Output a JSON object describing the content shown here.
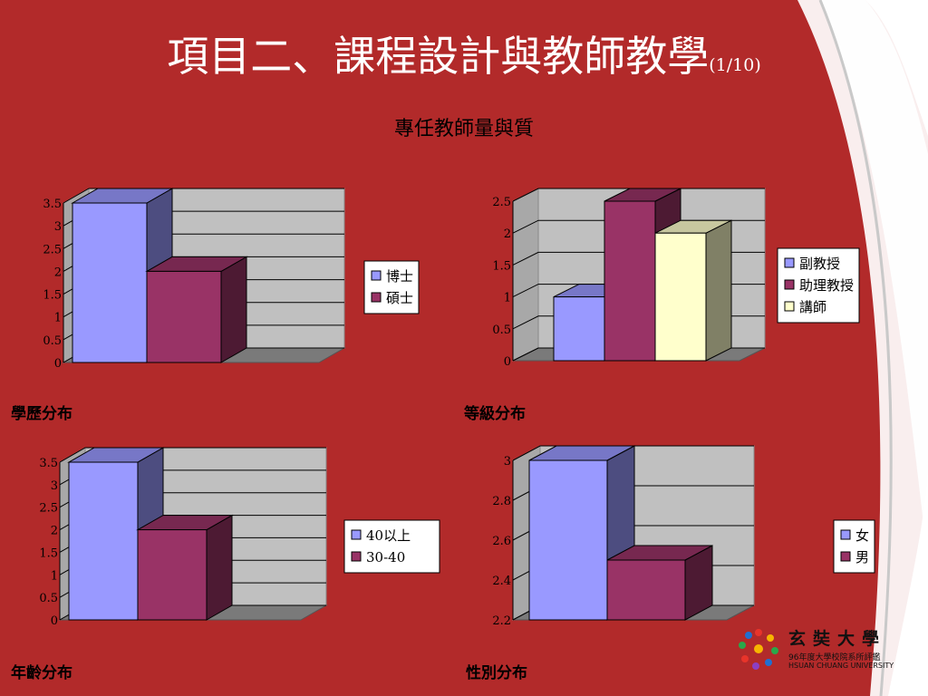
{
  "page": {
    "title": "項目二、課程設計與教師教學",
    "page_indicator": "(1/10)",
    "subtitle": "專任教師量與質"
  },
  "colors": {
    "background": "#b22a2a",
    "series_colors": [
      "#9999ff",
      "#993366",
      "#ffffcc"
    ]
  },
  "logo": {
    "name": "玄奘大學",
    "line1": "96年度大學校院系所評鑑",
    "line2": "HSUAN CHUANG UNIVERSITY"
  },
  "chart_data": [
    {
      "type": "bar",
      "caption": "學歷分布",
      "categories": [
        ""
      ],
      "series": [
        {
          "name": "博士",
          "values": [
            3.5
          ]
        },
        {
          "name": "碩士",
          "values": [
            2
          ]
        }
      ],
      "ylim": [
        0,
        3.5
      ],
      "yticks": [
        "0",
        "0.5",
        "1",
        "1.5",
        "2",
        "2.5",
        "3",
        "3.5"
      ],
      "grid": true,
      "legend_position": "right"
    },
    {
      "type": "bar",
      "caption": "等級分布",
      "categories": [
        ""
      ],
      "series": [
        {
          "name": "副教授",
          "values": [
            1
          ]
        },
        {
          "name": "助理教授",
          "values": [
            2.5
          ]
        },
        {
          "name": "講師",
          "values": [
            2
          ]
        }
      ],
      "ylim": [
        0,
        2.5
      ],
      "yticks": [
        "0",
        "0.5",
        "1",
        "1.5",
        "2",
        "2.5"
      ],
      "grid": true,
      "legend_position": "right"
    },
    {
      "type": "bar",
      "caption": "年齡分布",
      "categories": [
        ""
      ],
      "series": [
        {
          "name": "40以上",
          "values": [
            3.5
          ]
        },
        {
          "name": "30-40",
          "values": [
            2
          ]
        }
      ],
      "ylim": [
        0,
        3.5
      ],
      "yticks": [
        "0",
        "0.5",
        "1",
        "1.5",
        "2",
        "2.5",
        "3",
        "3.5"
      ],
      "grid": true,
      "legend_position": "right"
    },
    {
      "type": "bar",
      "caption": "性別分布",
      "categories": [
        ""
      ],
      "series": [
        {
          "name": "女",
          "values": [
            3
          ]
        },
        {
          "name": "男",
          "values": [
            2.5
          ]
        }
      ],
      "ylim": [
        2.2,
        3
      ],
      "yticks": [
        "2.2",
        "2.4",
        "2.6",
        "2.8",
        "3"
      ],
      "grid": true,
      "legend_position": "right"
    }
  ]
}
